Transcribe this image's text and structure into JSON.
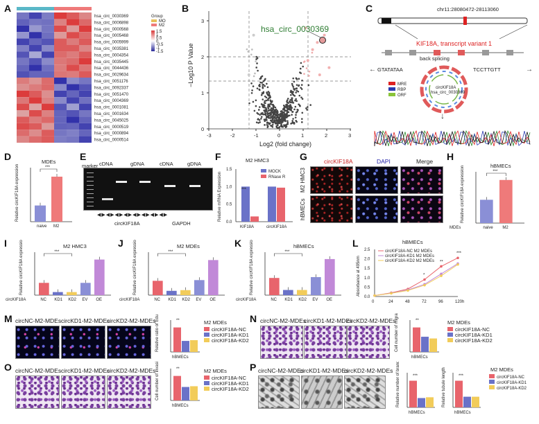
{
  "panels": [
    "A",
    "B",
    "C",
    "D",
    "E",
    "F",
    "G",
    "H",
    "I",
    "J",
    "K",
    "L",
    "M",
    "N",
    "O",
    "P"
  ],
  "colors": {
    "ctrl": "#8a8fd6",
    "m2": "#ef7a7a",
    "red": "#e8646c",
    "blue": "#6a72c8",
    "yellow": "#f2cc5a",
    "purple": "#c189d8",
    "green": "#3a7d3a",
    "dark": "#222222"
  },
  "A": {
    "legend_title": "Group",
    "legend_items": [
      "MO",
      "M2"
    ],
    "scale_labels": [
      "1.5",
      "1",
      "0.5",
      "0",
      "-0.5",
      "-1",
      "-1.5"
    ],
    "rows": [
      "hsa_circ_0030369",
      "hsa_circ_0006898",
      "hsa_circ_0000568",
      "hsa_circ_0005468",
      "hsa_circ_0005999",
      "hsa_circ_0035381",
      "hsa_circ_0004354",
      "hsa_circ_0035445",
      "hsa_circ_0044436",
      "hsa_circ_0029634",
      "hsa_circ_0051176",
      "hsa_circ_0092337",
      "hsa_circ_0051470",
      "hsa_circ_0004369",
      "hsa_circ_0001081",
      "hsa_circ_0001634",
      "hsa_circ_0045025",
      "hsa_circ_0000519",
      "hsa_circ_0000894",
      "hsa_circ_0000514"
    ]
  },
  "B": {
    "highlight": "hsa_circ_0030369",
    "ylabel": "−Log10 P Value",
    "xlabel": "Log2 (fold change)",
    "xticks": [
      "-3",
      "-2",
      "-1",
      "0",
      "1",
      "2",
      "3"
    ],
    "yticks": [
      "0",
      "1",
      "2",
      "3"
    ]
  },
  "C": {
    "locus": "chr11:28080472-28113060",
    "gene": "KIF18A, transcript variant 1",
    "splicing": "back splicing",
    "seq_left": "GTATATAA",
    "seq_right": "TCCTTGTT",
    "circ_name": "circKIF18A",
    "circ_id": "hsa_circ_0030369",
    "legend": [
      "MRE",
      "RBP",
      "ORF"
    ]
  },
  "D": {
    "title": "MDEs",
    "ylabel": "Relative circKIF18A expression",
    "categories": [
      "naive",
      "M2"
    ],
    "sig": "***"
  },
  "E": {
    "marker": "marker",
    "lanes": [
      "cDNA",
      "gDNA",
      "cDNA",
      "gDNA"
    ],
    "genes": [
      "circKIF18A",
      "GAPDH"
    ]
  },
  "F": {
    "title": "M2 HMC3",
    "ylabel": "Relative mRNA Expression",
    "legend": [
      "MOCK",
      "RNase R"
    ],
    "categories": [
      "KIF18A",
      "circKIF18A"
    ],
    "sig": "***"
  },
  "G": {
    "cols": [
      "circKIF18A",
      "DAPI",
      "Merge"
    ],
    "rows": [
      "M2 HMC3",
      "hBMECs"
    ]
  },
  "H": {
    "title": "hBMECs",
    "ylabel": "Relative circKIF18A expression",
    "prefix": "MDEs",
    "categories": [
      "naive",
      "M2"
    ],
    "sig": "***"
  },
  "I": {
    "title": "M2 HMC3",
    "ylabel": "Relative circKIF18A expression",
    "prefix": "circKIF18A",
    "categories": [
      "NC",
      "KD1",
      "KD2",
      "EV",
      "OE"
    ],
    "sig": "***"
  },
  "J": {
    "title": "M2 MDEs",
    "ylabel": "Relative circKIF18A expression",
    "prefix": "circKIF18A",
    "categories": [
      "NC",
      "KD1",
      "KD2",
      "EV",
      "OE"
    ],
    "sig": "***"
  },
  "K": {
    "title": "hBMECs",
    "ylabel": "Relative circKIF18A expression",
    "prefix": "circKIF18A",
    "categories": [
      "NC",
      "KD1",
      "KD2",
      "EV",
      "OE"
    ],
    "sig": "***"
  },
  "L": {
    "title": "hBMECs",
    "ylabel": "Absorbance at 495nm",
    "xticks": [
      "0",
      "24",
      "48",
      "72",
      "96",
      "120h"
    ],
    "yticks": [
      "0.0",
      "0.5",
      "1.0",
      "1.5",
      "2.0",
      "2.5"
    ],
    "legend": [
      "circKIF18A-NC M2 MDEs",
      "circKIF18A-KD1 M2 MDEs",
      "circKIF18A-KD2 M2 MDEs"
    ],
    "sig": [
      "*",
      "**",
      "***"
    ]
  },
  "M": {
    "images": [
      "circNC-M2-MDEs",
      "circKD1-M2-MDEs",
      "circKD2-M2-MDEs"
    ],
    "ylabel": "Relative ratio of Edu positive cells (%)",
    "xlabel": "hBMECs",
    "legend_title": "M2 MDEs",
    "legend": [
      "circKIF18A-NC",
      "circKIF18A-KD1",
      "circKIF18A-KD2"
    ],
    "sig": "**"
  },
  "N": {
    "images": [
      "circNC-M2-MDEs",
      "circKD1-M2-MDEs",
      "circKD2-M2-MDEs"
    ],
    "ylabel": "Cell number of migration",
    "xlabel": "hBMECs",
    "legend_title": "M2 MDEs",
    "legend": [
      "circKIF18A-NC",
      "circKIF18A-KD1",
      "circKIF18A-KD2"
    ],
    "sig": "**"
  },
  "O": {
    "images": [
      "circNC-M2-MDEs",
      "circKD1-M2-MDEs",
      "circKD2-M2-MDEs"
    ],
    "ylabel": "Cell number of invasion",
    "xlabel": "hBMECs",
    "legend_title": "M2 MDEs",
    "legend": [
      "circKIF18A-NC",
      "circKIF18A-KD1",
      "circKIF18A-KD2"
    ],
    "sig": "**"
  },
  "P": {
    "images": [
      "circNC-M2-MDEs",
      "circKD1-M2-MDEs",
      "circKD2-M2-MDEs"
    ],
    "ylabel1": "Relative number of branches",
    "ylabel2": "Relative tubule length",
    "xlabel": "hBMECs",
    "legend_title": "M2 MDEs",
    "legend": [
      "circKIF18A-NC",
      "circKIF18A-KD1",
      "circKIF18A-KD2"
    ],
    "sig": "***"
  },
  "chart_data": [
    {
      "panel": "D",
      "type": "bar",
      "title": "MDEs",
      "categories": [
        "naive",
        "M2"
      ],
      "values": [
        0.9,
        2.5
      ],
      "ylabel": "Relative circKIF18A expression"
    },
    {
      "panel": "F",
      "type": "bar",
      "title": "M2 HMC3",
      "categories": [
        "KIF18A",
        "circKIF18A"
      ],
      "series": [
        {
          "name": "MOCK",
          "values": [
            1.0,
            1.0
          ]
        },
        {
          "name": "RNase R",
          "values": [
            0.15,
            0.97
          ]
        }
      ],
      "ylim": [
        0,
        1.5
      ],
      "yticks": [
        "0.0",
        "0.5",
        "1.0",
        "1.5"
      ]
    },
    {
      "panel": "H",
      "type": "bar",
      "title": "hBMECs",
      "categories": [
        "naive",
        "M2"
      ],
      "values": [
        1.0,
        1.85
      ]
    },
    {
      "panel": "I",
      "type": "bar",
      "title": "M2 HMC3",
      "categories": [
        "NC",
        "KD1",
        "KD2",
        "EV",
        "OE"
      ],
      "values": [
        1.0,
        0.25,
        0.25,
        1.0,
        2.9
      ]
    },
    {
      "panel": "J",
      "type": "bar",
      "title": "M2 MDEs",
      "categories": [
        "NC",
        "KD1",
        "KD2",
        "EV",
        "OE"
      ],
      "values": [
        1.0,
        0.3,
        0.35,
        1.05,
        2.45
      ]
    },
    {
      "panel": "K",
      "type": "bar",
      "title": "hBMECs",
      "categories": [
        "NC",
        "KD1",
        "KD2",
        "EV",
        "OE"
      ],
      "values": [
        1.0,
        0.3,
        0.3,
        1.05,
        2.1
      ]
    },
    {
      "panel": "L",
      "type": "line",
      "title": "hBMECs",
      "x": [
        0,
        24,
        48,
        72,
        96,
        120
      ],
      "series": [
        {
          "name": "circKIF18A-NC M2 MDEs",
          "values": [
            0.05,
            0.2,
            0.4,
            0.9,
            1.6,
            2.05
          ]
        },
        {
          "name": "circKIF18A-KD1 M2 MDEs",
          "values": [
            0.05,
            0.18,
            0.35,
            0.65,
            1.2,
            1.75
          ]
        },
        {
          "name": "circKIF18A-KD2 M2 MDEs",
          "values": [
            0.05,
            0.17,
            0.32,
            0.6,
            1.1,
            1.7
          ]
        }
      ],
      "ylim": [
        0,
        2.5
      ]
    },
    {
      "panel": "M",
      "type": "bar",
      "categories": [
        "circKIF18A-NC",
        "circKIF18A-KD1",
        "circKIF18A-KD2"
      ],
      "values": [
        100,
        45,
        48
      ]
    },
    {
      "panel": "N",
      "type": "bar",
      "categories": [
        "circKIF18A-NC",
        "circKIF18A-KD1",
        "circKIF18A-KD2"
      ],
      "values": [
        100,
        62,
        55
      ]
    },
    {
      "panel": "O",
      "type": "bar",
      "categories": [
        "circKIF18A-NC",
        "circKIF18A-KD1",
        "circKIF18A-KD2"
      ],
      "values": [
        100,
        55,
        58
      ]
    },
    {
      "panel": "P1",
      "type": "bar",
      "categories": [
        "circKIF18A-NC",
        "circKIF18A-KD1",
        "circKIF18A-KD2"
      ],
      "values": [
        1.0,
        0.35,
        0.38
      ]
    },
    {
      "panel": "P2",
      "type": "bar",
      "categories": [
        "circKIF18A-NC",
        "circKIF18A-KD1",
        "circKIF18A-KD2"
      ],
      "values": [
        1.0,
        0.4,
        0.4
      ]
    }
  ]
}
